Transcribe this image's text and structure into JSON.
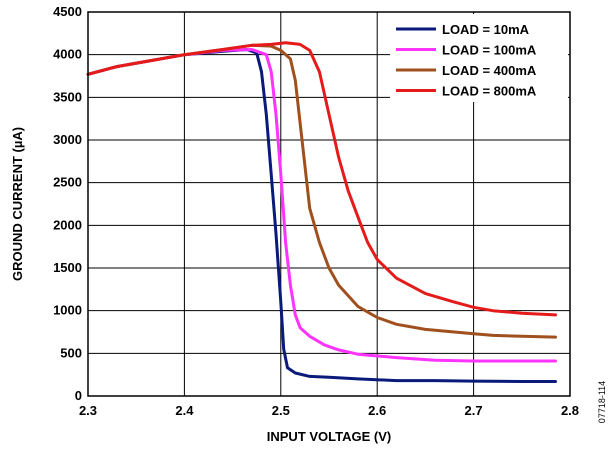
{
  "chart_data": {
    "type": "line",
    "xlabel": "INPUT VOLTAGE (V)",
    "ylabel": "GROUND CURRENT (µA)",
    "xlim": [
      2.3,
      2.8
    ],
    "ylim": [
      0,
      4500
    ],
    "xticks": [
      "2.3",
      "2.4",
      "2.5",
      "2.6",
      "2.7",
      "2.8"
    ],
    "yticks": [
      "0",
      "500",
      "1000",
      "1500",
      "2000",
      "2500",
      "3000",
      "3500",
      "4000",
      "4500"
    ],
    "grid": true,
    "legend_position": "top-right",
    "figure_id": "07718-114",
    "series": [
      {
        "name": "LOAD = 10mA",
        "color": "#0a1a7a",
        "points": [
          [
            2.3,
            3770
          ],
          [
            2.33,
            3860
          ],
          [
            2.36,
            3920
          ],
          [
            2.4,
            4000
          ],
          [
            2.44,
            4040
          ],
          [
            2.465,
            4060
          ],
          [
            2.475,
            4020
          ],
          [
            2.48,
            3800
          ],
          [
            2.485,
            3300
          ],
          [
            2.49,
            2600
          ],
          [
            2.495,
            1900
          ],
          [
            2.5,
            1100
          ],
          [
            2.503,
            550
          ],
          [
            2.507,
            330
          ],
          [
            2.515,
            270
          ],
          [
            2.53,
            230
          ],
          [
            2.55,
            220
          ],
          [
            2.58,
            200
          ],
          [
            2.62,
            180
          ],
          [
            2.66,
            180
          ],
          [
            2.7,
            175
          ],
          [
            2.75,
            170
          ],
          [
            2.785,
            170
          ]
        ]
      },
      {
        "name": "LOAD = 100mA",
        "color": "#ff33ff",
        "points": [
          [
            2.3,
            3770
          ],
          [
            2.33,
            3860
          ],
          [
            2.36,
            3920
          ],
          [
            2.4,
            4000
          ],
          [
            2.44,
            4050
          ],
          [
            2.47,
            4060
          ],
          [
            2.485,
            4000
          ],
          [
            2.49,
            3800
          ],
          [
            2.495,
            3300
          ],
          [
            2.5,
            2600
          ],
          [
            2.505,
            1800
          ],
          [
            2.51,
            1300
          ],
          [
            2.515,
            950
          ],
          [
            2.52,
            800
          ],
          [
            2.53,
            700
          ],
          [
            2.545,
            600
          ],
          [
            2.56,
            540
          ],
          [
            2.58,
            490
          ],
          [
            2.62,
            450
          ],
          [
            2.66,
            420
          ],
          [
            2.7,
            410
          ],
          [
            2.75,
            410
          ],
          [
            2.785,
            410
          ]
        ]
      },
      {
        "name": "LOAD = 400mA",
        "color": "#a0501e",
        "points": [
          [
            2.3,
            3770
          ],
          [
            2.33,
            3860
          ],
          [
            2.36,
            3920
          ],
          [
            2.4,
            4000
          ],
          [
            2.44,
            4060
          ],
          [
            2.47,
            4110
          ],
          [
            2.49,
            4100
          ],
          [
            2.5,
            4050
          ],
          [
            2.51,
            3950
          ],
          [
            2.515,
            3700
          ],
          [
            2.52,
            3200
          ],
          [
            2.525,
            2700
          ],
          [
            2.53,
            2200
          ],
          [
            2.54,
            1800
          ],
          [
            2.55,
            1500
          ],
          [
            2.56,
            1300
          ],
          [
            2.58,
            1050
          ],
          [
            2.6,
            920
          ],
          [
            2.62,
            840
          ],
          [
            2.65,
            780
          ],
          [
            2.68,
            750
          ],
          [
            2.7,
            730
          ],
          [
            2.72,
            710
          ],
          [
            2.75,
            700
          ],
          [
            2.785,
            690
          ]
        ]
      },
      {
        "name": "LOAD = 800mA",
        "color": "#e51b1b",
        "points": [
          [
            2.3,
            3770
          ],
          [
            2.33,
            3860
          ],
          [
            2.36,
            3920
          ],
          [
            2.4,
            4000
          ],
          [
            2.44,
            4060
          ],
          [
            2.47,
            4110
          ],
          [
            2.49,
            4120
          ],
          [
            2.505,
            4140
          ],
          [
            2.52,
            4120
          ],
          [
            2.53,
            4050
          ],
          [
            2.54,
            3800
          ],
          [
            2.55,
            3300
          ],
          [
            2.56,
            2800
          ],
          [
            2.57,
            2400
          ],
          [
            2.58,
            2100
          ],
          [
            2.59,
            1800
          ],
          [
            2.6,
            1600
          ],
          [
            2.62,
            1380
          ],
          [
            2.65,
            1200
          ],
          [
            2.68,
            1100
          ],
          [
            2.7,
            1040
          ],
          [
            2.72,
            1000
          ],
          [
            2.75,
            970
          ],
          [
            2.785,
            950
          ]
        ]
      }
    ]
  }
}
